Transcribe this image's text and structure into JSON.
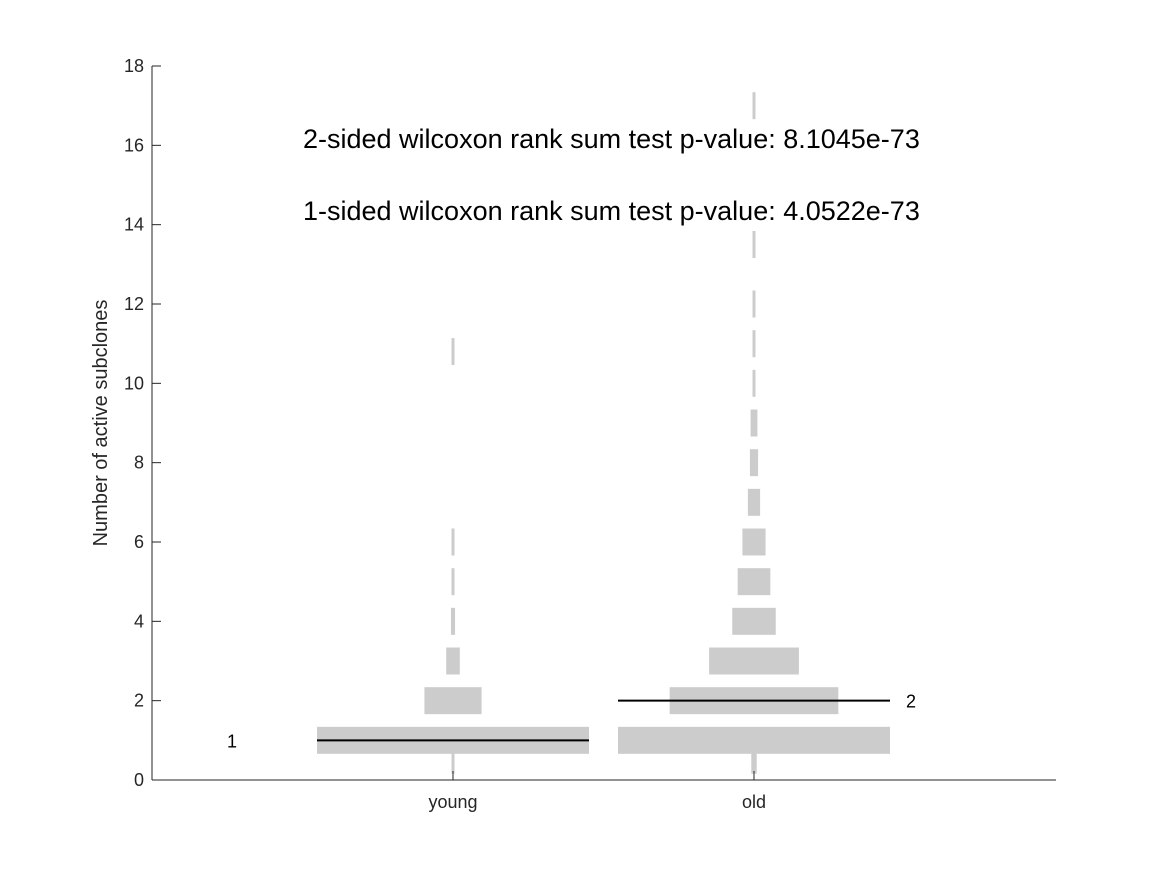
{
  "chart_data": {
    "type": "violin",
    "ylabel": "Number of active subclones",
    "ylim": [
      0,
      18
    ],
    "yticks": [
      "0",
      "2",
      "4",
      "6",
      "8",
      "10",
      "12",
      "14",
      "16",
      "18"
    ],
    "categories": [
      "young",
      "old"
    ],
    "annotations": [
      "2-sided wilcoxon rank sum test p-value:  8.1045e-73",
      "1-sided wilcoxon rank sum test p-value:  4.0522e-73"
    ],
    "fill_color": "#cccccc",
    "median_color": "#000000",
    "series": [
      {
        "category": "young",
        "median": 1,
        "median_label": "1",
        "distribution": [
          {
            "value": 0.5,
            "density": 0.01
          },
          {
            "value": 1,
            "density": 1.0
          },
          {
            "value": 2,
            "density": 0.21
          },
          {
            "value": 3,
            "density": 0.05
          },
          {
            "value": 4,
            "density": 0.015
          },
          {
            "value": 5,
            "density": 0.006
          },
          {
            "value": 6,
            "density": 0.006
          },
          {
            "value": 10.8,
            "density": 0.004
          }
        ]
      },
      {
        "category": "old",
        "median": 2,
        "median_label": "2",
        "distribution": [
          {
            "value": 0.5,
            "density": 0.02
          },
          {
            "value": 1,
            "density": 1.0
          },
          {
            "value": 2,
            "density": 0.62
          },
          {
            "value": 3,
            "density": 0.33
          },
          {
            "value": 4,
            "density": 0.16
          },
          {
            "value": 5,
            "density": 0.12
          },
          {
            "value": 6,
            "density": 0.085
          },
          {
            "value": 7,
            "density": 0.045
          },
          {
            "value": 8,
            "density": 0.03
          },
          {
            "value": 9,
            "density": 0.025
          },
          {
            "value": 10,
            "density": 0.01
          },
          {
            "value": 11,
            "density": 0.01
          },
          {
            "value": 12,
            "density": 0.008
          },
          {
            "value": 13.5,
            "density": 0.004
          },
          {
            "value": 17,
            "density": 0.004
          }
        ]
      }
    ]
  }
}
